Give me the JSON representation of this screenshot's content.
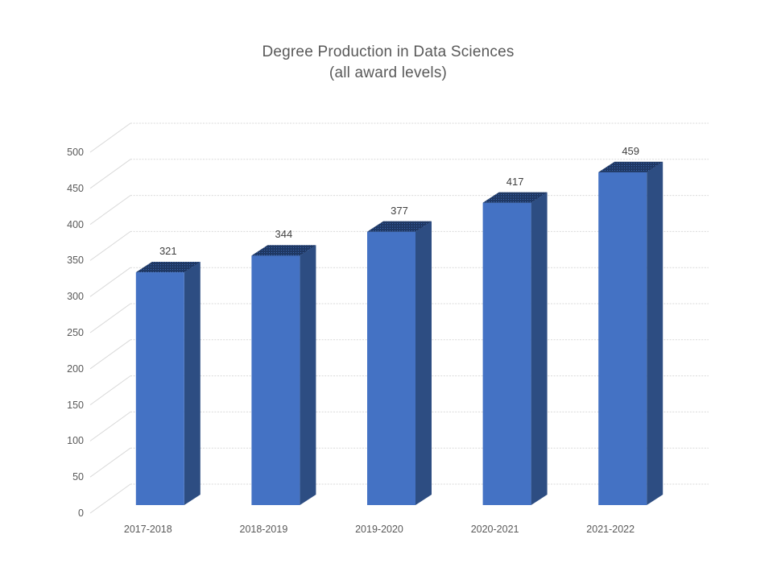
{
  "title": {
    "line1": "Degree Production in Data Sciences",
    "line2": "(all award levels)"
  },
  "chart_data": {
    "type": "bar",
    "projection": "3d",
    "title": "Degree Production in Data Sciences (all award levels)",
    "categories": [
      "2017-2018",
      "2018-2019",
      "2019-2020",
      "2020-2021",
      "2021-2022"
    ],
    "values": [
      321,
      344,
      377,
      417,
      459
    ],
    "data_labels": [
      "321",
      "344",
      "377",
      "417",
      "459"
    ],
    "xlabel": "",
    "ylabel": "",
    "ylim": [
      0,
      500
    ],
    "yticks": [
      0,
      50,
      100,
      150,
      200,
      250,
      300,
      350,
      400,
      450,
      500
    ],
    "grid": true,
    "legend": false,
    "colors": {
      "bar_front": "#4472c4",
      "bar_side": "#2d4d82",
      "bar_top_base": "#1f3864",
      "bar_top_dot": "#3c66ad",
      "gridline": "#d9d9d9",
      "tick_text": "#595959",
      "category_text": "#595959",
      "data_label_text": "#404040",
      "title_text": "#595959",
      "background": "#ffffff"
    }
  }
}
